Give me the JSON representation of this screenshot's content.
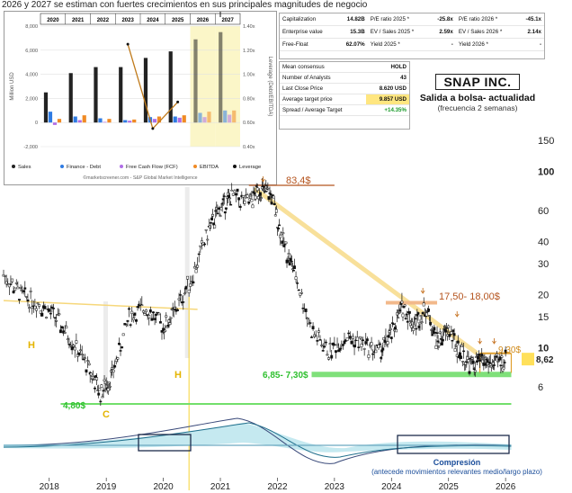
{
  "caption": "2026 y 2027 se estiman con fuertes crecimientos en sus principales magnitudes de negocio",
  "stats_top": {
    "rows": [
      [
        "Capitalization",
        "14.82B",
        "P/E ratio 2025 *",
        "-25.8x",
        "P/E ratio 2026 *",
        "-45.1x"
      ],
      [
        "Enterprise value",
        "15.3B",
        "EV / Sales 2025 *",
        "2.59x",
        "EV / Sales 2026 *",
        "2.14x"
      ],
      [
        "Free-Float",
        "62.07%",
        "Yield 2025 *",
        "-",
        "Yield 2026 *",
        "-"
      ]
    ]
  },
  "consensus": {
    "rows": [
      [
        "Mean consensus",
        "HOLD"
      ],
      [
        "Number of Analysts",
        "43"
      ],
      [
        "Last Close Price",
        "8.620 USD"
      ],
      [
        "Average target price",
        "9.857 USD"
      ],
      [
        "Spread / Average Target",
        "+14.35%"
      ]
    ]
  },
  "title": {
    "main": "SNAP INC.",
    "sub": "Salida a bolsa- actualidad",
    "sub2": "(frecuencia 2 semanas)"
  },
  "chart_data": [
    {
      "type": "bar",
      "title": "",
      "years": [
        "2020",
        "2021",
        "2022",
        "2023",
        "2024",
        "2025",
        "2026",
        "2027"
      ],
      "estimated": [
        "2026",
        "2027"
      ],
      "ylabel": "Million USD",
      "y2label": "Leverage (Debt/EBITDA)",
      "ylim": [
        -2000,
        8000
      ],
      "yticks": [
        "-2,000",
        "0",
        "2,000",
        "4,000",
        "6,000",
        "8,000"
      ],
      "y2lim": [
        0.4,
        1.4
      ],
      "y2ticks": [
        "0.40x",
        "0.60x",
        "0.80x",
        "1.00x",
        "1.20x",
        "1.40x"
      ],
      "series": [
        {
          "name": "Sales",
          "color": "#222222",
          "values": [
            2500,
            4100,
            4600,
            4600,
            5360,
            5900,
            6900,
            7500
          ]
        },
        {
          "name": "Finance - Debt",
          "color": "#2f7be3",
          "values": [
            900,
            500,
            350,
            200,
            450,
            500,
            800,
            1000
          ]
        },
        {
          "name": "Free Cash Flow (FCF)",
          "color": "#b06ee6",
          "values": [
            -200,
            200,
            50,
            150,
            300,
            400,
            450,
            650
          ]
        },
        {
          "name": "EBITDA",
          "color": "#f08a24",
          "values": [
            300,
            600,
            300,
            250,
            500,
            600,
            900,
            1000
          ]
        }
      ],
      "leverage": {
        "name": "Leverage",
        "color": "#c07a1a",
        "values": [
          null,
          null,
          null,
          1.25,
          0.55,
          0.77,
          null,
          null
        ]
      },
      "source": "©marketscreener.com - S&P Global Market Intelligence"
    },
    {
      "type": "line",
      "title": "",
      "x_ticks": [
        "2018",
        "2019",
        "2020",
        "2021",
        "2022",
        "2023",
        "2024",
        "2025",
        "2026"
      ],
      "y_scale": "log",
      "y_ticks": [
        "150",
        "100",
        "60",
        "40",
        "30",
        "20",
        "15",
        "10",
        "6"
      ],
      "last_price": "8,62",
      "annotations": [
        "83,4$",
        "17,50- 18,00$",
        "9,30$",
        "6,85- 7,30$",
        "4,80$",
        "H",
        "H",
        "C"
      ],
      "oscillator_label": "Compresión",
      "oscillator_sub": "(antecede movimientos relevantes medio/largo plazo)",
      "price_series": {
        "x": [
          2017.2,
          2017.5,
          2017.8,
          2018.1,
          2018.4,
          2018.7,
          2018.9,
          2019.1,
          2019.4,
          2019.7,
          2020.0,
          2020.2,
          2020.5,
          2020.8,
          2021.0,
          2021.2,
          2021.5,
          2021.7,
          2021.9,
          2022.1,
          2022.3,
          2022.6,
          2022.9,
          2023.2,
          2023.5,
          2023.8,
          2024.0,
          2024.2,
          2024.4,
          2024.6,
          2024.8,
          2025.0,
          2025.2,
          2025.4,
          2025.6,
          2025.8,
          2026.0
        ],
        "y": [
          26,
          20,
          18,
          15,
          11,
          7.5,
          5.5,
          7,
          15,
          17,
          13,
          16,
          25,
          47,
          62,
          72,
          66,
          80,
          72,
          40,
          27,
          12.5,
          9.5,
          11.5,
          10.5,
          9.5,
          12,
          17.3,
          13.5,
          17,
          11,
          12.5,
          9.5,
          8,
          8.5,
          8,
          8.62
        ]
      }
    }
  ]
}
